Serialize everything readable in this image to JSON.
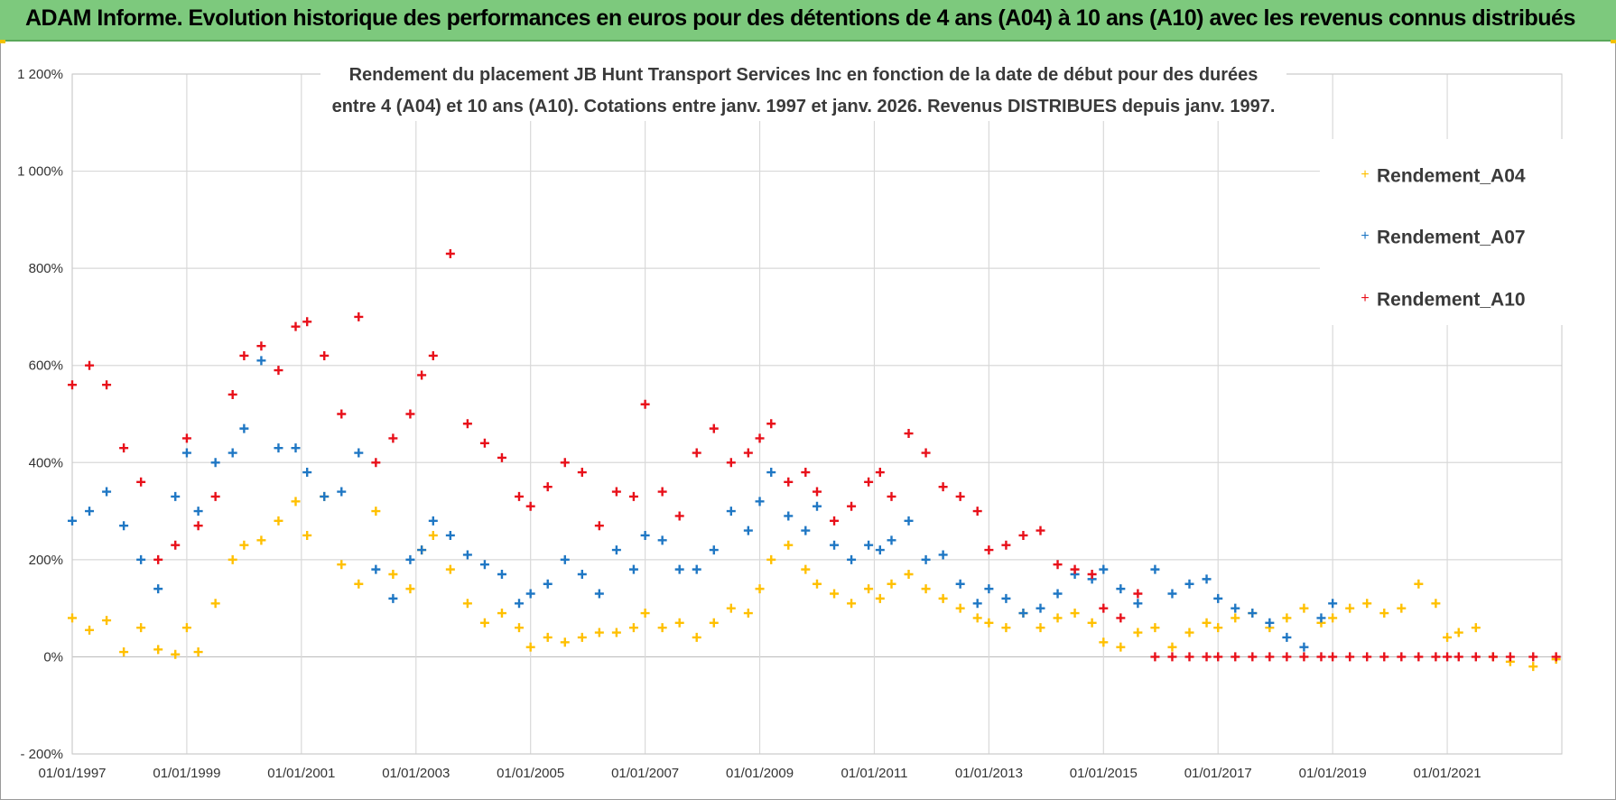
{
  "header": {
    "title": "ADAM Informe. Evolution historique des performances en euros pour des détentions de 4 ans (A04) à 10 ans (A10) avec les revenus connus distribués"
  },
  "colors": {
    "header_bg": "#7dc97d",
    "A04": "#ffc000",
    "A07": "#1f77c4",
    "A10": "#e8101a",
    "grid": "#d9d9d9"
  },
  "chart_data": {
    "type": "scatter",
    "title_lines": [
      "Rendement du placement JB Hunt Transport Services Inc en fonction de la date de début pour des durées",
      "entre 4 (A04) et 10 ans (A10).  Cotations entre janv. 1997 et janv. 2026. Revenus DISTRIBUES  depuis janv. 1997."
    ],
    "xlabel": "",
    "ylabel": "",
    "xlim": [
      1997.0,
      2023.0
    ],
    "ylim": [
      -200,
      1200
    ],
    "y_ticks": [
      -200,
      0,
      200,
      400,
      600,
      800,
      1000,
      1200
    ],
    "y_tick_labels": [
      "- 200%",
      "0%",
      "200%",
      "400%",
      "600%",
      "800%",
      "1 000%",
      "1 200%"
    ],
    "x_ticks": [
      1997,
      1999,
      2001,
      2003,
      2005,
      2007,
      2009,
      2011,
      2013,
      2015,
      2017,
      2019,
      2021
    ],
    "x_tick_labels": [
      "01/01/1997",
      "01/01/1999",
      "01/01/2001",
      "01/01/2003",
      "01/01/2005",
      "01/01/2007",
      "01/01/2009",
      "01/01/2011",
      "01/01/2013",
      "01/01/2015",
      "01/01/2017",
      "01/01/2019",
      "01/01/2021"
    ],
    "grid": true,
    "legend_position": "top-right",
    "marker": "+",
    "series": [
      {
        "name": "Rendement_A04",
        "color": "#ffc000",
        "x": [
          1997.0,
          1997.3,
          1997.6,
          1997.9,
          1998.2,
          1998.5,
          1998.8,
          1999.0,
          1999.2,
          1999.5,
          1999.8,
          2000.0,
          2000.3,
          2000.6,
          2000.9,
          2001.1,
          2001.4,
          2001.7,
          2002.0,
          2002.3,
          2002.6,
          2002.9,
          2003.1,
          2003.3,
          2003.6,
          2003.9,
          2004.2,
          2004.5,
          2004.8,
          2005.0,
          2005.3,
          2005.6,
          2005.9,
          2006.2,
          2006.5,
          2006.8,
          2007.0,
          2007.3,
          2007.6,
          2007.9,
          2008.2,
          2008.5,
          2008.8,
          2009.0,
          2009.2,
          2009.5,
          2009.8,
          2010.0,
          2010.3,
          2010.6,
          2010.9,
          2011.1,
          2011.3,
          2011.6,
          2011.9,
          2012.2,
          2012.5,
          2012.8,
          2013.0,
          2013.3,
          2013.6,
          2013.9,
          2014.2,
          2014.5,
          2014.8,
          2015.0,
          2015.3,
          2015.6,
          2015.9,
          2016.2,
          2016.5,
          2016.8,
          2017.0,
          2017.3,
          2017.6,
          2017.9,
          2018.2,
          2018.5,
          2018.8,
          2019.0,
          2019.3,
          2019.6,
          2019.9,
          2020.2,
          2020.5,
          2020.8,
          2021.0,
          2021.2,
          2021.5,
          2021.8,
          2022.1,
          2022.5,
          2022.9
        ],
        "y": [
          80,
          55,
          75,
          10,
          60,
          15,
          5,
          60,
          10,
          110,
          200,
          230,
          240,
          280,
          320,
          250,
          330,
          190,
          150,
          300,
          170,
          140,
          220,
          250,
          180,
          110,
          70,
          90,
          60,
          20,
          40,
          30,
          40,
          50,
          50,
          60,
          90,
          60,
          70,
          40,
          70,
          100,
          90,
          140,
          200,
          230,
          180,
          150,
          130,
          110,
          140,
          120,
          150,
          170,
          140,
          120,
          100,
          80,
          70,
          60,
          90,
          60,
          80,
          90,
          70,
          30,
          20,
          50,
          60,
          20,
          50,
          70,
          60,
          80,
          90,
          60,
          80,
          100,
          70,
          80,
          100,
          110,
          90,
          100,
          150,
          110,
          40,
          50,
          60,
          0,
          -10,
          -20,
          -5
        ]
      },
      {
        "name": "Rendement_A07",
        "color": "#1f77c4",
        "x": [
          1997.0,
          1997.3,
          1997.6,
          1997.9,
          1998.2,
          1998.5,
          1998.8,
          1999.0,
          1999.2,
          1999.5,
          1999.8,
          2000.0,
          2000.3,
          2000.6,
          2000.9,
          2001.1,
          2001.4,
          2001.7,
          2002.0,
          2002.3,
          2002.6,
          2002.9,
          2003.1,
          2003.3,
          2003.6,
          2003.9,
          2004.2,
          2004.5,
          2004.8,
          2005.0,
          2005.3,
          2005.6,
          2005.9,
          2006.2,
          2006.5,
          2006.8,
          2007.0,
          2007.3,
          2007.6,
          2007.9,
          2008.2,
          2008.5,
          2008.8,
          2009.0,
          2009.2,
          2009.5,
          2009.8,
          2010.0,
          2010.3,
          2010.6,
          2010.9,
          2011.1,
          2011.3,
          2011.6,
          2011.9,
          2012.2,
          2012.5,
          2012.8,
          2013.0,
          2013.3,
          2013.6,
          2013.9,
          2014.2,
          2014.5,
          2014.8,
          2015.0,
          2015.3,
          2015.6,
          2015.9,
          2016.2,
          2016.5,
          2016.8,
          2017.0,
          2017.3,
          2017.6,
          2017.9,
          2018.2,
          2018.5,
          2018.8,
          2019.0
        ],
        "y": [
          280,
          300,
          340,
          270,
          200,
          140,
          330,
          420,
          300,
          400,
          420,
          470,
          610,
          430,
          430,
          380,
          330,
          340,
          420,
          180,
          120,
          200,
          220,
          280,
          250,
          210,
          190,
          170,
          110,
          130,
          150,
          200,
          170,
          130,
          220,
          180,
          250,
          240,
          180,
          180,
          220,
          300,
          260,
          320,
          380,
          290,
          260,
          310,
          230,
          200,
          230,
          220,
          240,
          280,
          200,
          210,
          150,
          110,
          140,
          120,
          90,
          100,
          130,
          170,
          160,
          180,
          140,
          110,
          180,
          130,
          150,
          160,
          120,
          100,
          90,
          70,
          40,
          20,
          80,
          110
        ]
      },
      {
        "name": "Rendement_A10",
        "color": "#e8101a",
        "x": [
          1997.0,
          1997.3,
          1997.6,
          1997.9,
          1998.2,
          1998.5,
          1998.8,
          1999.0,
          1999.2,
          1999.5,
          1999.8,
          2000.0,
          2000.3,
          2000.6,
          2000.9,
          2001.1,
          2001.4,
          2001.7,
          2002.0,
          2002.3,
          2002.6,
          2002.9,
          2003.1,
          2003.3,
          2003.6,
          2003.9,
          2004.2,
          2004.5,
          2004.8,
          2005.0,
          2005.3,
          2005.6,
          2005.9,
          2006.2,
          2006.5,
          2006.8,
          2007.0,
          2007.3,
          2007.6,
          2007.9,
          2008.2,
          2008.5,
          2008.8,
          2009.0,
          2009.2,
          2009.5,
          2009.8,
          2010.0,
          2010.3,
          2010.6,
          2010.9,
          2011.1,
          2011.3,
          2011.6,
          2011.9,
          2012.2,
          2012.5,
          2012.8,
          2013.0,
          2013.3,
          2013.6,
          2013.9,
          2014.2,
          2014.5,
          2014.8,
          2015.0,
          2015.3,
          2015.6,
          2015.9,
          2016.2,
          2016.5,
          2016.8,
          2017.0,
          2017.3,
          2017.6,
          2017.9,
          2018.2,
          2018.5,
          2018.8,
          2019.0,
          2019.3,
          2019.6,
          2019.9,
          2020.2,
          2020.5,
          2020.8,
          2021.0,
          2021.2,
          2021.5,
          2021.8,
          2022.1,
          2022.5,
          2022.9
        ],
        "y": [
          560,
          600,
          560,
          430,
          360,
          200,
          230,
          450,
          270,
          330,
          540,
          620,
          640,
          590,
          680,
          690,
          620,
          500,
          700,
          400,
          450,
          500,
          580,
          620,
          830,
          480,
          440,
          410,
          330,
          310,
          350,
          400,
          380,
          270,
          340,
          330,
          520,
          340,
          290,
          420,
          470,
          400,
          420,
          450,
          480,
          360,
          380,
          340,
          280,
          310,
          360,
          380,
          330,
          460,
          420,
          350,
          330,
          300,
          220,
          230,
          250,
          260,
          190,
          180,
          170,
          100,
          80,
          130,
          0,
          0,
          0,
          0,
          0,
          0,
          0,
          0,
          0,
          0,
          0,
          0,
          0,
          0,
          0,
          0,
          0,
          0,
          0,
          0,
          0,
          0,
          0,
          0,
          0
        ]
      }
    ]
  }
}
